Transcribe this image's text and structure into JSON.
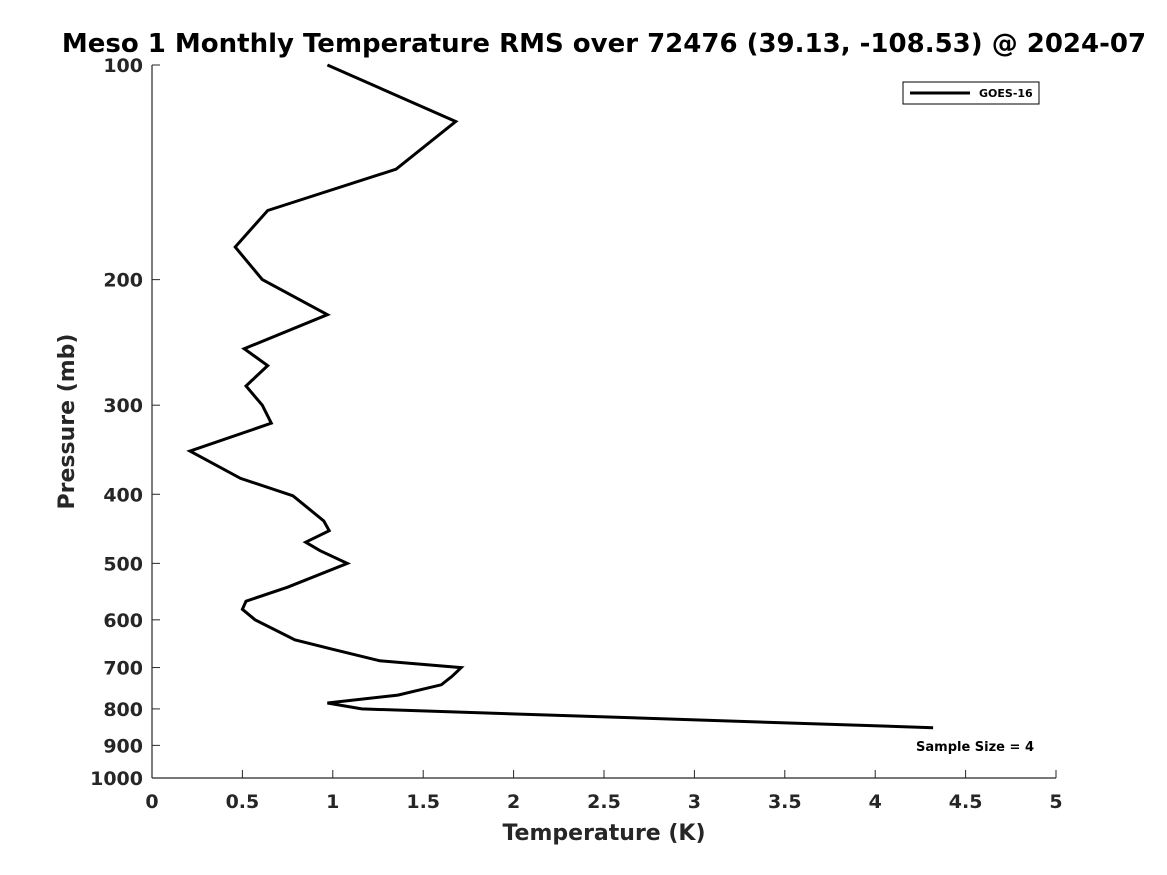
{
  "chart_data": {
    "type": "line",
    "title": "Meso 1 Monthly Temperature RMS over 72476 (39.13, -108.53) @ 2024-07",
    "xlabel": "Temperature (K)",
    "ylabel": "Pressure (mb)",
    "xlim": [
      0,
      5
    ],
    "ylim": [
      1000,
      100
    ],
    "y_scale": "log",
    "y_reversed": true,
    "x_ticks": [
      0,
      0.5,
      1,
      1.5,
      2,
      2.5,
      3,
      3.5,
      4,
      4.5,
      5
    ],
    "x_tick_labels": [
      "0",
      "0.5",
      "1",
      "1.5",
      "2",
      "2.5",
      "3",
      "3.5",
      "4",
      "4.5",
      "5"
    ],
    "y_ticks": [
      100,
      200,
      300,
      400,
      500,
      600,
      700,
      800,
      900,
      1000
    ],
    "y_tick_labels": [
      "100",
      "200",
      "300",
      "400",
      "500",
      "600",
      "700",
      "800",
      "900",
      "1000"
    ],
    "grid": false,
    "legend_position": "top-right",
    "annotation": "Sample Size = 4",
    "series": [
      {
        "name": "GOES-16",
        "color": "#000000",
        "points": [
          [
            0.97,
            100
          ],
          [
            1.68,
            120
          ],
          [
            1.35,
            140
          ],
          [
            0.64,
            160
          ],
          [
            0.46,
            180
          ],
          [
            0.61,
            200
          ],
          [
            0.97,
            224
          ],
          [
            0.51,
            250
          ],
          [
            0.64,
            264
          ],
          [
            0.52,
            282
          ],
          [
            0.61,
            300
          ],
          [
            0.66,
            318
          ],
          [
            0.21,
            348
          ],
          [
            0.49,
            380
          ],
          [
            0.78,
            402
          ],
          [
            0.95,
            436
          ],
          [
            0.98,
            450
          ],
          [
            0.85,
            467
          ],
          [
            0.93,
            480
          ],
          [
            1.08,
            500
          ],
          [
            0.75,
            540
          ],
          [
            0.52,
            565
          ],
          [
            0.5,
            580
          ],
          [
            0.57,
            600
          ],
          [
            0.79,
            640
          ],
          [
            1.0,
            660
          ],
          [
            1.26,
            685
          ],
          [
            1.71,
            700
          ],
          [
            1.66,
            720
          ],
          [
            1.6,
            740
          ],
          [
            1.36,
            765
          ],
          [
            0.97,
            785
          ],
          [
            1.16,
            800
          ],
          [
            4.32,
            850
          ]
        ]
      }
    ]
  }
}
